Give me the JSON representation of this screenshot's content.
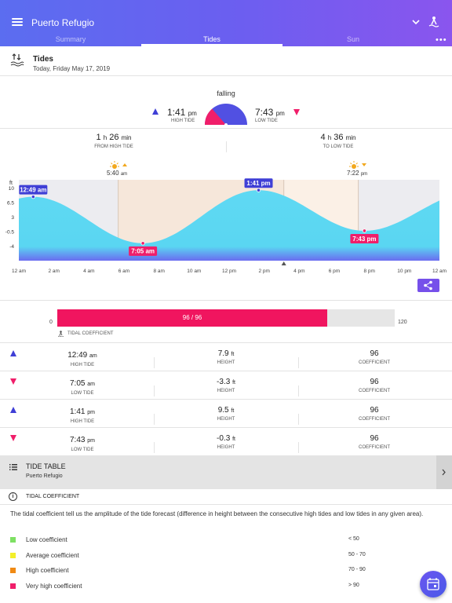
{
  "app": {
    "title": "Puerto Refugio"
  },
  "tabs": [
    {
      "label": "Summary"
    },
    {
      "label": "Tides"
    },
    {
      "label": "Sun"
    }
  ],
  "section": {
    "title": "Tides",
    "date": "Today, Friday May 17, 2019"
  },
  "current": {
    "state": "falling",
    "prev": {
      "time": "1:41",
      "ampm": "pm",
      "label": "HIGH TIDE"
    },
    "next": {
      "time": "7:43",
      "ampm": "pm",
      "label": "LOW TIDE"
    },
    "progress": 0.62
  },
  "durations": {
    "from": {
      "h": "1",
      "h_unit": "h",
      "m": "26",
      "m_unit": "min",
      "label": "FROM HIGH TIDE"
    },
    "to": {
      "h": "4",
      "h_unit": "h",
      "m": "36",
      "m_unit": "min",
      "label": "TO LOW TIDE"
    }
  },
  "sun": {
    "sunrise": {
      "time": "5:40",
      "ampm": "am"
    },
    "sunset": {
      "time": "7:22",
      "ampm": "pm"
    }
  },
  "chart_data": {
    "type": "area",
    "unit_label": "ft",
    "y_tick_labels": [
      "10",
      "6.5",
      "3",
      "-0.5",
      "-4"
    ],
    "x_tick_labels": [
      "12 am",
      "2 am",
      "4 am",
      "6 am",
      "8 am",
      "10 am",
      "12 pm",
      "2 pm",
      "4 pm",
      "6 pm",
      "8 pm",
      "10 pm",
      "12 am"
    ],
    "extremes": [
      {
        "time": "12:49 am",
        "hour": 0.82,
        "height": 7.9,
        "kind": "high"
      },
      {
        "time": "7:05 am",
        "hour": 7.08,
        "height": -3.3,
        "kind": "low"
      },
      {
        "time": "1:41 pm",
        "hour": 13.68,
        "height": 9.5,
        "kind": "high"
      },
      {
        "time": "7:43 pm",
        "hour": 19.72,
        "height": -0.3,
        "kind": "low"
      }
    ],
    "sunrise_hour": 5.67,
    "sunset_hour": 19.37,
    "now_hour": 15.12,
    "colors": {
      "fill": "#5fd9f3",
      "high": "#3f3fd6",
      "low": "#f01e6a",
      "daylight": "#f6e7da"
    }
  },
  "coefficient": {
    "value_text": "96 / 96",
    "min": "0",
    "max": "120",
    "label": "TIDAL COEFFICIENT",
    "fraction": 0.8
  },
  "tides": [
    {
      "kind": "high",
      "time": "12:49",
      "ampm": "am",
      "type_label": "HIGH TIDE",
      "height": "7.9",
      "unit": "ft",
      "height_label": "HEIGHT",
      "coef": "96",
      "coef_label": "COEFFICIENT"
    },
    {
      "kind": "low",
      "time": "7:05",
      "ampm": "am",
      "type_label": "LOW TIDE",
      "height": "-3.3",
      "unit": "ft",
      "height_label": "HEIGHT",
      "coef": "96",
      "coef_label": "COEFFICIENT"
    },
    {
      "kind": "high",
      "time": "1:41",
      "ampm": "pm",
      "type_label": "HIGH TIDE",
      "height": "9.5",
      "unit": "ft",
      "height_label": "HEIGHT",
      "coef": "96",
      "coef_label": "COEFFICIENT"
    },
    {
      "kind": "low",
      "time": "7:43",
      "ampm": "pm",
      "type_label": "LOW TIDE",
      "height": "-0.3",
      "unit": "ft",
      "height_label": "HEIGHT",
      "coef": "96",
      "coef_label": "COEFFICIENT"
    }
  ],
  "tide_table": {
    "title": "TIDE TABLE",
    "subtitle": "Puerto Refugio"
  },
  "info": {
    "title": "TIDAL COEFFICIENT",
    "text": "The tidal coefficient tell us the amplitude of the tide forecast (difference in height between the consecutive high tides and low tides in any given area).",
    "legend": [
      {
        "label": "Low coefficient",
        "value": "< 50",
        "color": "#7ee063"
      },
      {
        "label": "Average coefficient",
        "value": "50 - 70",
        "color": "#f3ef2a"
      },
      {
        "label": "High coefficient",
        "value": "70 - 90",
        "color": "#f08a14"
      },
      {
        "label": "Very high coefficient",
        "value": "> 90",
        "color": "#f01e6a"
      }
    ]
  }
}
